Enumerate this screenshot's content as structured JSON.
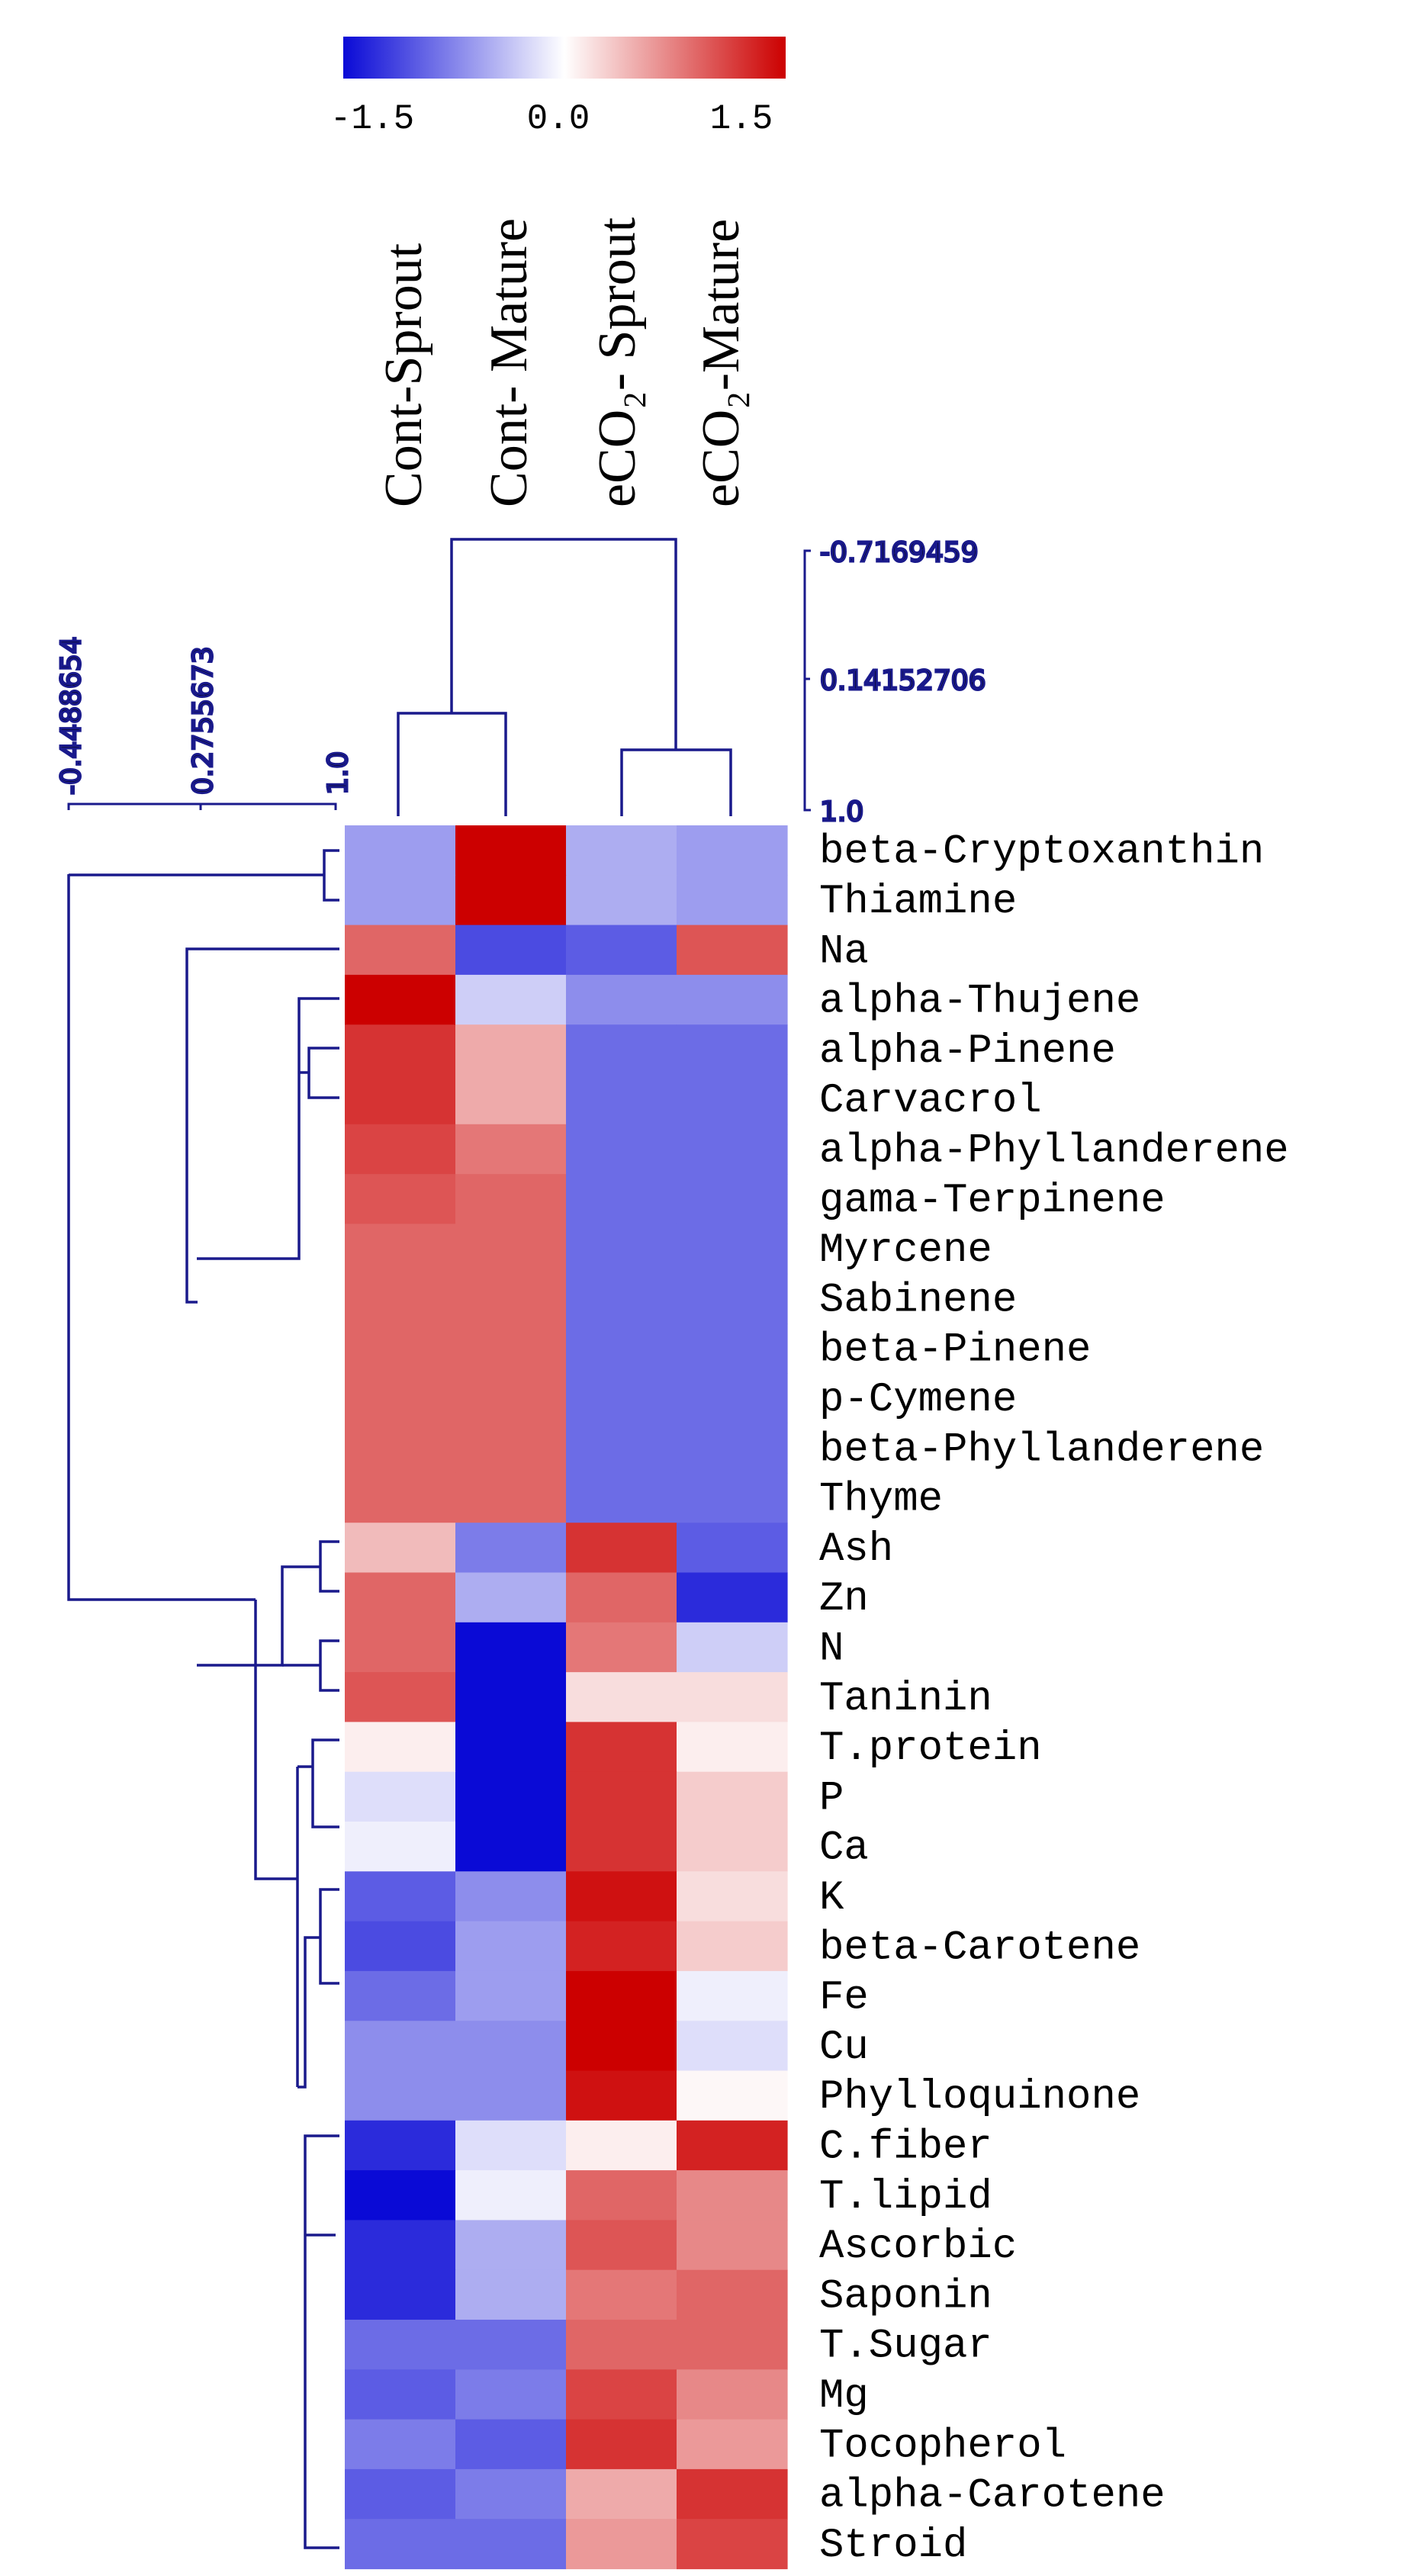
{
  "chart_data": {
    "type": "heatmap",
    "columns": [
      "Cont-Sprout",
      "Cont- Mature",
      "eCO₂- Sprout",
      "eCO₂-Mature"
    ],
    "rows": [
      "beta-Cryptoxanthin",
      "Thiamine",
      "Na",
      "alpha-Thujene",
      "alpha-Pinene",
      "Carvacrol",
      "alpha-Phyllanderene",
      "gama-Terpinene",
      "Myrcene",
      "Sabinene",
      "beta-Pinene",
      "p-Cymene",
      "beta-Phyllanderene",
      "Thyme",
      "Ash",
      "Zn",
      "N",
      "Taninin",
      "T.protein",
      "P",
      "Ca",
      "K",
      "beta-Carotene",
      "Fe",
      "Cu",
      "Phylloquinone",
      "C.fiber",
      "T.lipid",
      "Ascorbic",
      "Saponin",
      "T.Sugar",
      "Mg",
      "Tocopherol",
      "alpha-Carotene",
      "Stroid"
    ],
    "values": [
      [
        -0.6,
        1.5,
        -0.5,
        -0.6
      ],
      [
        -0.6,
        1.5,
        -0.5,
        -0.6
      ],
      [
        0.9,
        -1.1,
        -1.0,
        1.0
      ],
      [
        1.5,
        -0.3,
        -0.7,
        -0.7
      ],
      [
        1.2,
        0.5,
        -0.9,
        -0.9
      ],
      [
        1.2,
        0.5,
        -0.9,
        -0.9
      ],
      [
        1.1,
        0.8,
        -0.9,
        -0.9
      ],
      [
        1.0,
        0.9,
        -0.9,
        -0.9
      ],
      [
        0.9,
        0.9,
        -0.9,
        -0.9
      ],
      [
        0.9,
        0.9,
        -0.9,
        -0.9
      ],
      [
        0.9,
        0.9,
        -0.9,
        -0.9
      ],
      [
        0.9,
        0.9,
        -0.9,
        -0.9
      ],
      [
        0.9,
        0.9,
        -0.9,
        -0.9
      ],
      [
        0.9,
        0.9,
        -0.9,
        -0.9
      ],
      [
        0.4,
        -0.8,
        1.2,
        -1.0
      ],
      [
        0.9,
        -0.5,
        0.9,
        -1.3
      ],
      [
        0.9,
        -1.5,
        0.8,
        -0.3
      ],
      [
        1.0,
        -1.6,
        0.2,
        0.2
      ],
      [
        0.1,
        -1.5,
        1.2,
        0.1
      ],
      [
        -0.2,
        -1.5,
        1.2,
        0.3
      ],
      [
        -0.1,
        -1.5,
        1.2,
        0.3
      ],
      [
        -1.0,
        -0.7,
        1.4,
        0.2
      ],
      [
        -1.1,
        -0.6,
        1.3,
        0.3
      ],
      [
        -0.9,
        -0.6,
        1.5,
        -0.1
      ],
      [
        -0.7,
        -0.7,
        1.5,
        -0.2
      ],
      [
        -0.7,
        -0.7,
        1.4,
        0.05
      ],
      [
        -1.3,
        -0.2,
        0.1,
        1.3
      ],
      [
        -1.6,
        -0.1,
        0.9,
        0.7
      ],
      [
        -1.3,
        -0.5,
        1.0,
        0.7
      ],
      [
        -1.3,
        -0.5,
        0.8,
        0.9
      ],
      [
        -0.9,
        -0.9,
        0.9,
        0.9
      ],
      [
        -1.0,
        -0.8,
        1.1,
        0.7
      ],
      [
        -0.8,
        -1.0,
        1.2,
        0.6
      ],
      [
        -1.0,
        -0.8,
        0.5,
        1.2
      ],
      [
        -0.9,
        -0.9,
        0.6,
        1.1
      ]
    ],
    "color_scale": {
      "min": -1.5,
      "mid": 0.0,
      "max": 1.5,
      "tick_labels": [
        "-1.5",
        "0.0",
        "1.5"
      ],
      "low_color": "#0a0ad6",
      "mid_color": "#ffffff",
      "high_color": "#cc0000"
    },
    "column_tree_scale": [
      "-0.7169459",
      "0.14152706",
      "1.0"
    ],
    "row_tree_scale": [
      "-0.4488654",
      "0.2755673",
      "1.0"
    ],
    "dendrogram_color": "#1a1a8c"
  }
}
